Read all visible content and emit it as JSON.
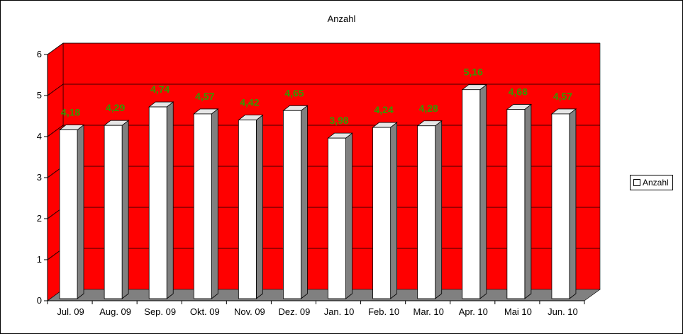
{
  "chart_data": {
    "type": "bar",
    "title": "Anzahl",
    "categories": [
      "Jul. 09",
      "Aug. 09",
      "Sep. 09",
      "Okt. 09",
      "Nov. 09",
      "Dez. 09",
      "Jan. 10",
      "Feb. 10",
      "Mar. 10",
      "Apr. 10",
      "Mai 10",
      "Jun. 10"
    ],
    "series": [
      {
        "name": "Anzahl",
        "values": [
          4.18,
          4.29,
          4.74,
          4.57,
          4.42,
          4.65,
          3.98,
          4.24,
          4.28,
          5.16,
          4.68,
          4.57
        ],
        "labels": [
          "4,18",
          "4,29",
          "4,74",
          "4,57",
          "4,42",
          "4,65",
          "3,98",
          "4,24",
          "4,28",
          "5,16",
          "4,68",
          "4,57"
        ]
      }
    ],
    "ylim": [
      0,
      6
    ],
    "yticks": [
      0,
      1,
      2,
      3,
      4,
      5,
      6
    ],
    "xlabel": "",
    "ylabel": "",
    "grid": true,
    "legend_position": "right",
    "style": "3d-column"
  },
  "colors": {
    "wall": "#ff0000",
    "wall_side": "#ff0000",
    "floor": "#808080",
    "bar_front": "#ffffff",
    "bar_top": "#e6e6e6",
    "bar_side": "#808080",
    "data_label": "#339900",
    "gridline": "#000000"
  }
}
